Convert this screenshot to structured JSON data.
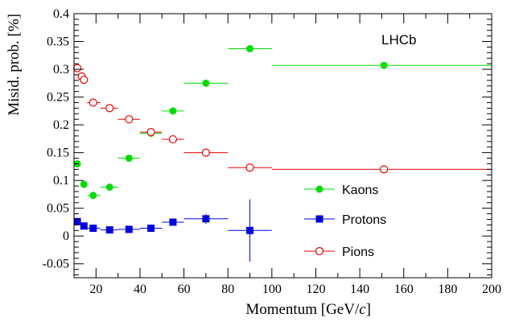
{
  "chart_data": {
    "type": "scatter",
    "xlabel": "Momentum [GeV/",
    "xlabel_italic": "c",
    "xlabel_end": "]",
    "ylabel": "Misid. prob. [%]",
    "annotation": "LHCb",
    "xlim": [
      10,
      200
    ],
    "ylim": [
      -0.075,
      0.4
    ],
    "xticks": [
      20,
      40,
      60,
      80,
      100,
      120,
      140,
      160,
      180,
      200
    ],
    "yticks": [
      -0.05,
      0,
      0.05,
      0.1,
      0.15,
      0.2,
      0.25,
      0.3,
      0.35,
      0.4
    ],
    "xtick_labels": [
      "20",
      "40",
      "60",
      "80",
      "100",
      "120",
      "140",
      "160",
      "180",
      "200"
    ],
    "ytick_labels": [
      "-0.05",
      "0",
      "0.05",
      "0.1",
      "0.15",
      "0.2",
      "0.25",
      "0.3",
      "0.35",
      "0.4"
    ],
    "grid": false,
    "legend_position": "bottom-right",
    "series": [
      {
        "name": "Kaons",
        "color": "#00dd00",
        "marker": "filled-circle",
        "points": [
          {
            "x": 11.5,
            "y": 0.13,
            "xlo": 10,
            "xhi": 13
          },
          {
            "x": 14.5,
            "y": 0.093,
            "xlo": 13,
            "xhi": 16
          },
          {
            "x": 18.7,
            "y": 0.073,
            "xlo": 16,
            "xhi": 22
          },
          {
            "x": 26.2,
            "y": 0.088,
            "xlo": 22,
            "xhi": 30
          },
          {
            "x": 35,
            "y": 0.14,
            "xlo": 30,
            "xhi": 40
          },
          {
            "x": 45,
            "y": 0.185,
            "xlo": 40,
            "xhi": 50
          },
          {
            "x": 55,
            "y": 0.225,
            "xlo": 50,
            "xhi": 60
          },
          {
            "x": 70,
            "y": 0.275,
            "xlo": 60,
            "xhi": 80
          },
          {
            "x": 90,
            "y": 0.337,
            "xlo": 80,
            "xhi": 100
          },
          {
            "x": 151,
            "y": 0.307,
            "xlo": 100,
            "xhi": 200
          }
        ]
      },
      {
        "name": "Protons",
        "color": "#0000dd",
        "marker": "filled-square",
        "points": [
          {
            "x": 11.5,
            "y": 0.026,
            "xlo": 10,
            "xhi": 13
          },
          {
            "x": 14.5,
            "y": 0.018,
            "xlo": 13,
            "xhi": 16
          },
          {
            "x": 18.7,
            "y": 0.014,
            "xlo": 16,
            "xhi": 22
          },
          {
            "x": 26.2,
            "y": 0.011,
            "xlo": 22,
            "xhi": 30
          },
          {
            "x": 35,
            "y": 0.012,
            "xlo": 30,
            "xhi": 40
          },
          {
            "x": 45,
            "y": 0.014,
            "xlo": 40,
            "xhi": 50
          },
          {
            "x": 55,
            "y": 0.025,
            "xlo": 50,
            "xhi": 60
          },
          {
            "x": 70,
            "y": 0.031,
            "xlo": 60,
            "xhi": 80,
            "ylo": 0.022,
            "yhi": 0.04
          },
          {
            "x": 90,
            "y": 0.01,
            "xlo": 80,
            "xhi": 100,
            "ylo": -0.046,
            "yhi": 0.066
          }
        ]
      },
      {
        "name": "Pions",
        "color": "#ee0000",
        "marker": "open-circle",
        "points": [
          {
            "x": 11.5,
            "y": 0.302,
            "xlo": 10,
            "xhi": 13
          },
          {
            "x": 13.5,
            "y": 0.287,
            "xlo": 12,
            "xhi": 15
          },
          {
            "x": 14.5,
            "y": 0.281,
            "xlo": 13,
            "xhi": 16
          },
          {
            "x": 18.7,
            "y": 0.24,
            "xlo": 16,
            "xhi": 22
          },
          {
            "x": 26.2,
            "y": 0.23,
            "xlo": 22,
            "xhi": 30
          },
          {
            "x": 35,
            "y": 0.21,
            "xlo": 30,
            "xhi": 40
          },
          {
            "x": 45,
            "y": 0.187,
            "xlo": 40,
            "xhi": 50
          },
          {
            "x": 55,
            "y": 0.174,
            "xlo": 50,
            "xhi": 60
          },
          {
            "x": 70,
            "y": 0.15,
            "xlo": 60,
            "xhi": 80
          },
          {
            "x": 90,
            "y": 0.123,
            "xlo": 80,
            "xhi": 100
          },
          {
            "x": 151,
            "y": 0.12,
            "xlo": 100,
            "xhi": 200
          }
        ]
      }
    ]
  }
}
